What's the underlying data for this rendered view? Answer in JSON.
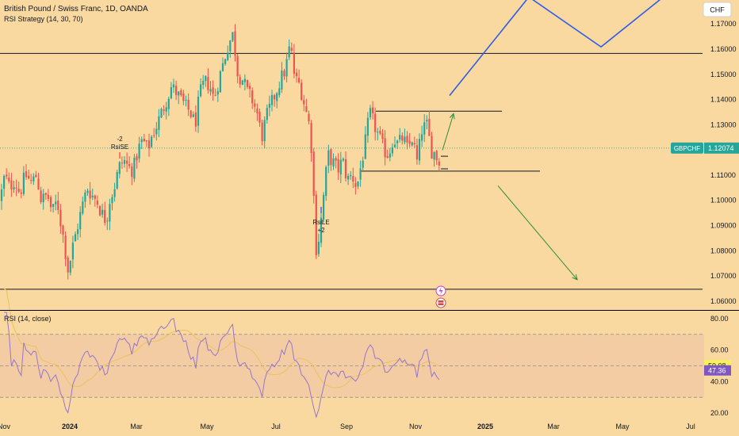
{
  "header": {
    "title": "British Pound / Swiss Franc, 1D, OANDA",
    "strategy": "RSI Strategy (14, 30, 70)",
    "rsi_title": "RSI (14, close)",
    "currency": "CHF"
  },
  "colors": {
    "background": "#f9d9a0",
    "up": "#26a69a",
    "down": "#ef5350",
    "rsi_line": "#9575cd",
    "rsi_ma": "#e8c35a",
    "rsi_band": "#f3c9a4",
    "projection": "#2f5ce8",
    "arrow": "#2e8b3c",
    "price_badge": "#26a69a",
    "rsi_badge": "#7e57c2",
    "ma_badge": "#f7f259"
  },
  "chart_data": [
    {
      "type": "candlestick",
      "series_name": "GBPCHF",
      "x_ticks": [
        "Nov",
        "2024",
        "Mar",
        "May",
        "Jul",
        "Sep",
        "Nov",
        "2025",
        "Mar",
        "May",
        "Jul"
      ],
      "y_ticks": [
        1.17,
        1.16,
        1.15,
        1.14,
        1.13,
        1.12,
        1.11,
        1.1,
        1.09,
        1.08,
        1.07,
        1.06
      ],
      "ylim": [
        1.0565,
        1.1795
      ],
      "last_price": 1.12074,
      "last_price_label": "1.12074",
      "close_path": [
        [
          0,
          1.1
        ],
        [
          6,
          1.11
        ],
        [
          12,
          1.105
        ],
        [
          18,
          1.108
        ],
        [
          25,
          1.103
        ],
        [
          32,
          1.11
        ],
        [
          40,
          1.107
        ],
        [
          46,
          1.11
        ],
        [
          52,
          1.1
        ],
        [
          60,
          1.102
        ],
        [
          66,
          1.095
        ],
        [
          72,
          1.1
        ],
        [
          80,
          1.085
        ],
        [
          86,
          1.072
        ],
        [
          92,
          1.082
        ],
        [
          98,
          1.09
        ],
        [
          104,
          1.098
        ],
        [
          110,
          1.105
        ],
        [
          116,
          1.102
        ],
        [
          122,
          1.1
        ],
        [
          128,
          1.095
        ],
        [
          134,
          1.092
        ],
        [
          138,
          1.1
        ],
        [
          144,
          1.105
        ],
        [
          150,
          1.113
        ],
        [
          156,
          1.116
        ],
        [
          162,
          1.113
        ],
        [
          168,
          1.112
        ],
        [
          174,
          1.12
        ],
        [
          180,
          1.124
        ],
        [
          186,
          1.12
        ],
        [
          192,
          1.126
        ],
        [
          198,
          1.13
        ],
        [
          204,
          1.135
        ],
        [
          210,
          1.14
        ],
        [
          216,
          1.145
        ],
        [
          222,
          1.143
        ],
        [
          228,
          1.14
        ],
        [
          234,
          1.137
        ],
        [
          240,
          1.135
        ],
        [
          246,
          1.13
        ],
        [
          252,
          1.142
        ],
        [
          258,
          1.147
        ],
        [
          264,
          1.146
        ],
        [
          270,
          1.14
        ],
        [
          276,
          1.148
        ],
        [
          282,
          1.155
        ],
        [
          288,
          1.162
        ],
        [
          294,
          1.166
        ],
        [
          300,
          1.15
        ],
        [
          306,
          1.148
        ],
        [
          312,
          1.143
        ],
        [
          318,
          1.14
        ],
        [
          324,
          1.135
        ],
        [
          330,
          1.125
        ],
        [
          336,
          1.133
        ],
        [
          342,
          1.138
        ],
        [
          348,
          1.143
        ],
        [
          354,
          1.148
        ],
        [
          360,
          1.152
        ],
        [
          366,
          1.162
        ],
        [
          372,
          1.148
        ],
        [
          378,
          1.146
        ],
        [
          384,
          1.138
        ],
        [
          390,
          1.13
        ],
        [
          394,
          1.117
        ],
        [
          398,
          1.08
        ],
        [
          402,
          1.085
        ],
        [
          406,
          1.095
        ],
        [
          410,
          1.108
        ],
        [
          414,
          1.118
        ],
        [
          420,
          1.115
        ],
        [
          426,
          1.112
        ],
        [
          432,
          1.116
        ],
        [
          438,
          1.108
        ],
        [
          444,
          1.11
        ],
        [
          450,
          1.105
        ],
        [
          456,
          1.115
        ],
        [
          462,
          1.125
        ],
        [
          466,
          1.135
        ],
        [
          472,
          1.13
        ],
        [
          478,
          1.125
        ],
        [
          484,
          1.12
        ],
        [
          490,
          1.118
        ],
        [
          496,
          1.125
        ],
        [
          502,
          1.122
        ],
        [
          508,
          1.125
        ],
        [
          514,
          1.12
        ],
        [
          520,
          1.125
        ],
        [
          526,
          1.115
        ],
        [
          532,
          1.128
        ],
        [
          538,
          1.13
        ],
        [
          544,
          1.12
        ],
        [
          550,
          1.118
        ],
        [
          556,
          1.1125
        ]
      ],
      "horizontal_levels": [
        1.1583,
        1.0647,
        1.1354,
        1.1116
      ],
      "annotations": [
        {
          "id": "rsi-se",
          "lines": [
            "-2",
            "RsiSE"
          ],
          "price": 1.1235
        },
        {
          "id": "rsi-le",
          "lines": [
            "RsiLE",
            "+2"
          ],
          "price": 1.0905
        }
      ],
      "projection_path": [
        [
          567,
          1.1416
        ],
        [
          667,
          1.1807
        ],
        [
          758,
          1.1609
        ],
        [
          835,
          1.1803
        ]
      ],
      "up_arrow": [
        [
          558,
          1.1199
        ],
        [
          572,
          1.1344
        ]
      ],
      "down_arrow": [
        [
          628,
          1.1058
        ],
        [
          728,
          1.0685
        ]
      ]
    },
    {
      "type": "line",
      "series_name": "RSI (14, close)",
      "y_ticks": [
        80,
        60,
        50.08,
        47.36,
        40,
        20
      ],
      "y_tick_labels": [
        "80.00",
        "60.00",
        "50.08",
        "47.36",
        "40.00",
        "20.00"
      ],
      "ylim": [
        16.5,
        85
      ],
      "bands": {
        "upper": 70,
        "middle": 50,
        "lower": 30
      },
      "last_rsi": 47.36,
      "last_rsi_label": "47.36",
      "last_ma": 50.08,
      "last_ma_label": "50.08"
    }
  ]
}
